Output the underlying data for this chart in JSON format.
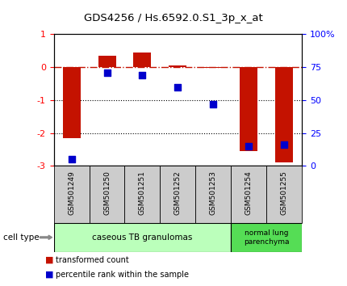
{
  "title": "GDS4256 / Hs.6592.0.S1_3p_x_at",
  "samples": [
    "GSM501249",
    "GSM501250",
    "GSM501251",
    "GSM501252",
    "GSM501253",
    "GSM501254",
    "GSM501255"
  ],
  "transformed_count": [
    -2.15,
    0.35,
    0.45,
    0.05,
    -0.02,
    -2.55,
    -2.9
  ],
  "percentile_rank": [
    5,
    71,
    69,
    60,
    47,
    15,
    16
  ],
  "ylim_left": [
    -3,
    1
  ],
  "ylim_right": [
    0,
    100
  ],
  "yticks_left": [
    -3,
    -2,
    -1,
    0,
    1
  ],
  "yticks_right": [
    0,
    25,
    50,
    75,
    100
  ],
  "yticklabels_right": [
    "0",
    "25",
    "50",
    "75",
    "100%"
  ],
  "dotted_lines": [
    -1,
    -2
  ],
  "bar_color": "#C41200",
  "dot_color": "#0000CC",
  "cell_type_bg1": "#BBFFBB",
  "cell_type_bg2": "#55DD55",
  "cell_types": [
    {
      "label": "caseous TB granulomas",
      "indices": [
        0,
        1,
        2,
        3,
        4
      ]
    },
    {
      "label": "normal lung\nparenchyma",
      "indices": [
        5,
        6
      ]
    }
  ],
  "cell_type_label": "cell type",
  "xtick_bg": "#CCCCCC",
  "legend_items": [
    {
      "color": "#C41200",
      "label": "transformed count"
    },
    {
      "color": "#0000CC",
      "label": "percentile rank within the sample"
    }
  ],
  "background_color": "#FFFFFF",
  "bar_width": 0.5
}
